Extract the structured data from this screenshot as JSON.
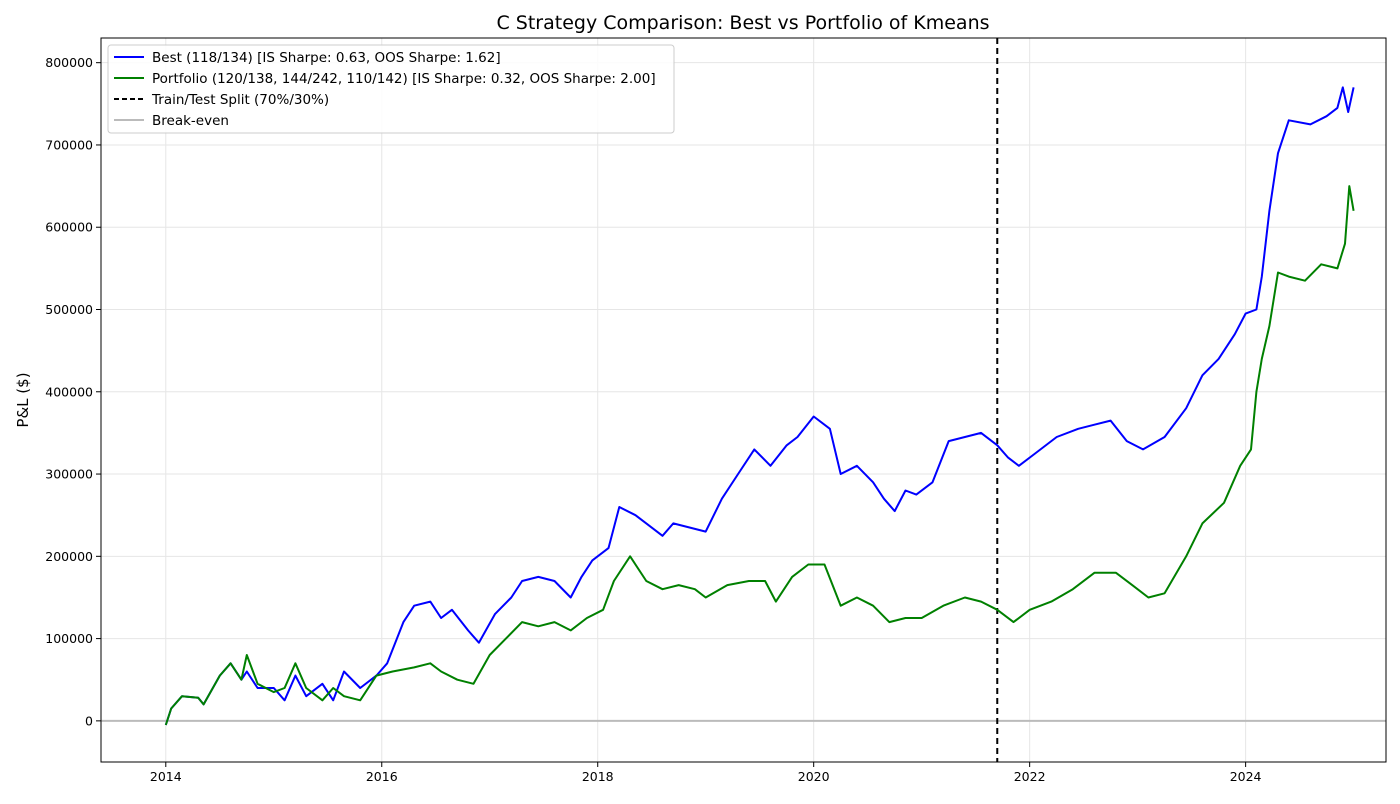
{
  "chart_data": {
    "type": "line",
    "title": "C Strategy Comparison: Best vs Portfolio of Kmeans",
    "xlabel": "",
    "ylabel": "P&L ($)",
    "xlim": [
      2013.4,
      2025.3
    ],
    "ylim": [
      -50000,
      830000
    ],
    "xticks": [
      2014,
      2016,
      2018,
      2020,
      2022,
      2024
    ],
    "yticks": [
      0,
      100000,
      200000,
      300000,
      400000,
      500000,
      600000,
      700000,
      800000
    ],
    "grid": true,
    "legend_position": "top-left",
    "split": {
      "x": 2021.7,
      "label": "Train/Test Split (70%/30%)",
      "color": "#000000"
    },
    "breakeven": {
      "y": 0,
      "label": "Break-even",
      "color": "#bbbbbb"
    },
    "series": [
      {
        "name": "Best (118/134) [IS Sharpe: 0.63, OOS Sharpe: 1.62]",
        "color": "#0000ff",
        "x": [
          2014.0,
          2014.05,
          2014.15,
          2014.3,
          2014.35,
          2014.5,
          2014.6,
          2014.7,
          2014.75,
          2014.85,
          2015.0,
          2015.1,
          2015.2,
          2015.3,
          2015.45,
          2015.55,
          2015.65,
          2015.8,
          2015.95,
          2016.05,
          2016.2,
          2016.3,
          2016.45,
          2016.55,
          2016.65,
          2016.8,
          2016.9,
          2017.05,
          2017.2,
          2017.3,
          2017.45,
          2017.6,
          2017.75,
          2017.85,
          2017.95,
          2018.1,
          2018.2,
          2018.35,
          2018.45,
          2018.6,
          2018.7,
          2018.85,
          2019.0,
          2019.15,
          2019.3,
          2019.45,
          2019.6,
          2019.75,
          2019.85,
          2020.0,
          2020.15,
          2020.25,
          2020.4,
          2020.55,
          2020.65,
          2020.75,
          2020.85,
          2020.95,
          2021.1,
          2021.25,
          2021.4,
          2021.55,
          2021.7,
          2021.8,
          2021.9,
          2022.05,
          2022.25,
          2022.45,
          2022.6,
          2022.75,
          2022.9,
          2023.05,
          2023.25,
          2023.45,
          2023.6,
          2023.75,
          2023.9,
          2024.0,
          2024.1,
          2024.15,
          2024.22,
          2024.3,
          2024.4,
          2024.6,
          2024.75,
          2024.85,
          2024.9,
          2024.95,
          2025.0
        ],
        "y": [
          -5000,
          15000,
          30000,
          28000,
          20000,
          55000,
          70000,
          50000,
          60000,
          40000,
          40000,
          25000,
          55000,
          30000,
          45000,
          25000,
          60000,
          40000,
          55000,
          70000,
          120000,
          140000,
          145000,
          125000,
          135000,
          110000,
          95000,
          130000,
          150000,
          170000,
          175000,
          170000,
          150000,
          175000,
          195000,
          210000,
          260000,
          250000,
          240000,
          225000,
          240000,
          235000,
          230000,
          270000,
          300000,
          330000,
          310000,
          335000,
          345000,
          370000,
          355000,
          300000,
          310000,
          290000,
          270000,
          255000,
          280000,
          275000,
          290000,
          340000,
          345000,
          350000,
          335000,
          320000,
          310000,
          325000,
          345000,
          355000,
          360000,
          365000,
          340000,
          330000,
          345000,
          380000,
          420000,
          440000,
          470000,
          495000,
          500000,
          540000,
          620000,
          690000,
          730000,
          725000,
          735000,
          745000,
          770000,
          740000,
          770000
        ]
      },
      {
        "name": "Portfolio (120/138, 144/242, 110/142) [IS Sharpe: 0.32, OOS Sharpe: 2.00]",
        "color": "#008000",
        "x": [
          2014.0,
          2014.05,
          2014.15,
          2014.3,
          2014.35,
          2014.5,
          2014.6,
          2014.7,
          2014.75,
          2014.85,
          2015.0,
          2015.1,
          2015.2,
          2015.3,
          2015.45,
          2015.55,
          2015.65,
          2015.8,
          2015.95,
          2016.1,
          2016.3,
          2016.45,
          2016.55,
          2016.7,
          2016.85,
          2017.0,
          2017.15,
          2017.3,
          2017.45,
          2017.6,
          2017.75,
          2017.9,
          2018.05,
          2018.15,
          2018.3,
          2018.45,
          2018.6,
          2018.75,
          2018.9,
          2019.0,
          2019.2,
          2019.4,
          2019.55,
          2019.65,
          2019.8,
          2019.95,
          2020.1,
          2020.25,
          2020.4,
          2020.55,
          2020.7,
          2020.85,
          2021.0,
          2021.2,
          2021.4,
          2021.55,
          2021.7,
          2021.85,
          2022.0,
          2022.2,
          2022.4,
          2022.6,
          2022.8,
          2022.95,
          2023.1,
          2023.25,
          2023.45,
          2023.6,
          2023.8,
          2023.95,
          2024.05,
          2024.1,
          2024.15,
          2024.22,
          2024.3,
          2024.4,
          2024.55,
          2024.7,
          2024.85,
          2024.92,
          2024.96,
          2025.0
        ],
        "y": [
          -5000,
          15000,
          30000,
          28000,
          20000,
          55000,
          70000,
          50000,
          80000,
          45000,
          35000,
          40000,
          70000,
          40000,
          25000,
          40000,
          30000,
          25000,
          55000,
          60000,
          65000,
          70000,
          60000,
          50000,
          45000,
          80000,
          100000,
          120000,
          115000,
          120000,
          110000,
          125000,
          135000,
          170000,
          200000,
          170000,
          160000,
          165000,
          160000,
          150000,
          165000,
          170000,
          170000,
          145000,
          175000,
          190000,
          190000,
          140000,
          150000,
          140000,
          120000,
          125000,
          125000,
          140000,
          150000,
          145000,
          135000,
          120000,
          135000,
          145000,
          160000,
          180000,
          180000,
          165000,
          150000,
          155000,
          200000,
          240000,
          265000,
          310000,
          330000,
          400000,
          440000,
          480000,
          545000,
          540000,
          535000,
          555000,
          550000,
          580000,
          650000,
          620000
        ]
      }
    ]
  }
}
